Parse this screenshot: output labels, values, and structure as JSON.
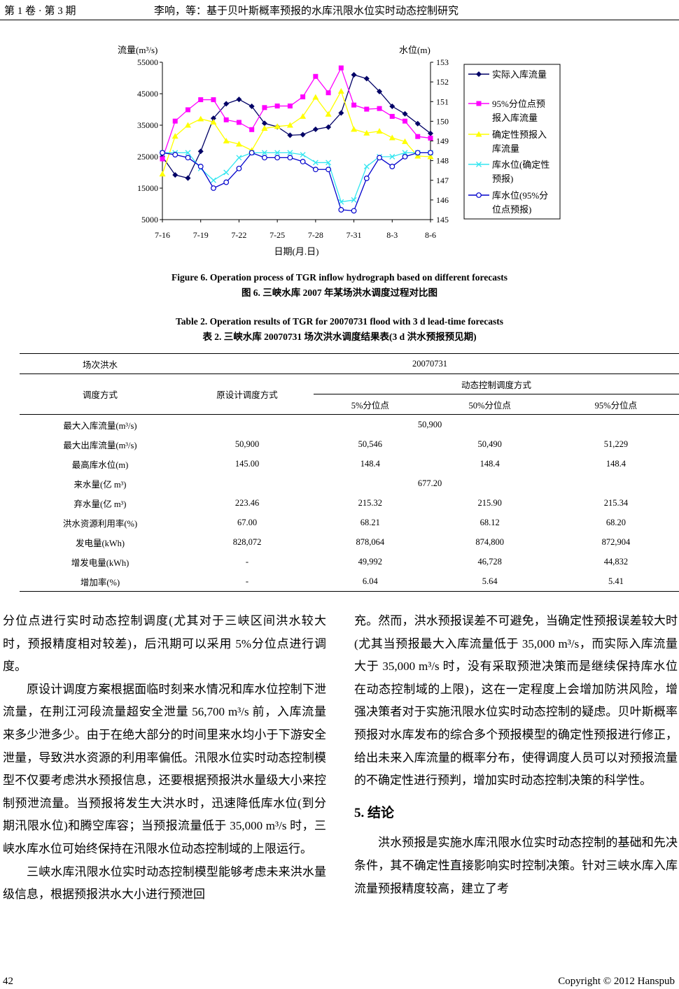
{
  "header": {
    "left": "第 1 卷 · 第 3 期",
    "center": "李响，等：基于贝叶斯概率预报的水库汛限水位实时动态控制研究"
  },
  "chart_data": {
    "type": "line",
    "ylabel": "流量(m³/s)",
    "y2label": "水位(m)",
    "xlabel": "日期(月.日)",
    "ylim": [
      5000,
      55000
    ],
    "y2lim": [
      145,
      153
    ],
    "yticks": [
      "55000",
      "45000",
      "35000",
      "25000",
      "15000",
      "5000"
    ],
    "y2ticks": [
      "153",
      "152",
      "151",
      "150",
      "149",
      "148",
      "147",
      "146",
      "145"
    ],
    "xticks": [
      "7-16",
      "7-19",
      "7-22",
      "7-25",
      "7-28",
      "7-31",
      "8-3",
      "8-6"
    ],
    "x": [
      "7-16",
      "7-17",
      "7-18",
      "7-19",
      "7-20",
      "7-21",
      "7-22",
      "7-23",
      "7-24",
      "7-25",
      "7-26",
      "7-27",
      "7-28",
      "7-29",
      "7-30",
      "7-31",
      "8-1",
      "8-2",
      "8-3",
      "8-4",
      "8-5",
      "8-6"
    ],
    "legend_position": "right",
    "series": [
      {
        "name": "实际入库流量",
        "axis": "left",
        "color": "#000066",
        "marker": "diamond",
        "values": [
          25000,
          19200,
          18200,
          26700,
          37200,
          41800,
          43200,
          41000,
          35600,
          34500,
          31800,
          32000,
          33700,
          34400,
          38900,
          51000,
          49800,
          45700,
          41000,
          38600,
          35500,
          32400
        ]
      },
      {
        "name": "95%分位点预报入库流量",
        "axis": "left",
        "color": "#ff00ff",
        "marker": "square",
        "values": [
          24300,
          36300,
          39900,
          43100,
          43100,
          36700,
          35900,
          33600,
          40600,
          41100,
          41100,
          44000,
          50500,
          45300,
          53200,
          41400,
          40100,
          40300,
          37800,
          36300,
          31400,
          30900
        ]
      },
      {
        "name": "确定性预报入库流量",
        "axis": "left",
        "color": "#ffff00",
        "marker": "triangle",
        "values": [
          19500,
          31500,
          35000,
          37000,
          36000,
          30000,
          29000,
          27000,
          34000,
          34600,
          35000,
          37800,
          43900,
          38500,
          45800,
          33700,
          32500,
          33100,
          31000,
          29800,
          25200,
          25000
        ]
      },
      {
        "name": "库水位(确定性预报)",
        "axis": "right",
        "color": "#33e6f0",
        "marker": "x",
        "values": [
          148.4,
          148.4,
          148.4,
          147.6,
          147.0,
          147.4,
          148.15,
          148.4,
          148.4,
          148.4,
          148.4,
          148.3,
          147.9,
          147.9,
          145.9,
          146.0,
          147.7,
          148.2,
          148.2,
          148.4,
          148.4,
          148.4
        ]
      },
      {
        "name": "库水位(95%分位点预报)",
        "axis": "right",
        "color": "#0000cc",
        "marker": "circle",
        "values": [
          148.4,
          148.3,
          148.15,
          147.7,
          146.6,
          146.9,
          147.6,
          148.4,
          148.15,
          148.15,
          148.15,
          147.95,
          147.55,
          147.55,
          145.5,
          145.45,
          147.1,
          148.15,
          147.7,
          148.2,
          148.4,
          148.4
        ]
      }
    ]
  },
  "legend_lines": [
    [
      "实际入库流量"
    ],
    [
      "95%分位点预",
      "报入库流量"
    ],
    [
      "确定性预报入",
      "库流量"
    ],
    [
      "库水位(确定性",
      "预报)"
    ],
    [
      "库水位(95%分",
      "位点预报)"
    ]
  ],
  "figure_caption": {
    "en": "Figure 6. Operation process of TGR inflow hydrograph based on different forecasts",
    "zh": "图 6.  三峡水库 2007 年某场洪水调度过程对比图"
  },
  "table_caption": {
    "en": "Table 2. Operation results of TGR for 20070731 flood with 3 d lead-time forecasts",
    "zh": "表 2.  三峡水库 20070731 场次洪水调度结果表(3 d 洪水预报预见期)"
  },
  "table": {
    "flood_label": "场次洪水",
    "flood_value": "20070731",
    "mode_label": "调度方式",
    "original": "原设计调度方式",
    "dynamic": "动态控制调度方式",
    "quantiles": [
      "5%分位点",
      "50%分位点",
      "95%分位点"
    ],
    "merged_rows": {
      "0": "50,900",
      "3": "677.20"
    },
    "rows": [
      {
        "label": "最大入库流量(m³/s)",
        "values": []
      },
      {
        "label": "最大出库流量(m³/s)",
        "values": [
          "50,900",
          "50,546",
          "50,490",
          "51,229"
        ]
      },
      {
        "label": "最高库水位(m)",
        "values": [
          "145.00",
          "148.4",
          "148.4",
          "148.4"
        ]
      },
      {
        "label": "来水量(亿 m³)",
        "values": []
      },
      {
        "label": "弃水量(亿 m³)",
        "values": [
          "223.46",
          "215.32",
          "215.90",
          "215.34"
        ]
      },
      {
        "label": "洪水资源利用率(%)",
        "values": [
          "67.00",
          "68.21",
          "68.12",
          "68.20"
        ]
      },
      {
        "label": "发电量(kWh)",
        "values": [
          "828,072",
          "878,064",
          "874,800",
          "872,904"
        ]
      },
      {
        "label": "增发电量(kWh)",
        "values": [
          "-",
          "49,992",
          "46,728",
          "44,832"
        ]
      },
      {
        "label": "增加率(%)",
        "values": [
          "-",
          "6.04",
          "5.64",
          "5.41"
        ]
      }
    ]
  },
  "body": {
    "left": [
      "分位点进行实时动态控制调度(尤其对于三峡区间洪水较大时，预报精度相对较差)，后汛期可以采用 5%分位点进行调度。",
      "原设计调度方案根据面临时刻来水情况和库水位控制下泄流量，在荆江河段流量超安全泄量 56,700 m³/s 前，入库流量来多少泄多少。由于在绝大部分的时间里来水均小于下游安全泄量，导致洪水资源的利用率偏低。汛限水位实时动态控制模型不仅要考虑洪水预报信息，还要根据预报洪水量级大小来控制预泄流量。当预报将发生大洪水时，迅速降低库水位(到分期汛限水位)和腾空库容；当预报流量低于 35,000 m³/s 时，三峡水库水位可始终保持在汛限水位动态控制域的上限运行。",
      "三峡水库汛限水位实时动态控制模型能够考虑未来洪水量级信息，根据预报洪水大小进行预泄回"
    ],
    "right": [
      "充。然而，洪水预报误差不可避免，当确定性预报误差较大时(尤其当预报最大入库流量低于 35,000 m³/s，而实际入库流量大于 35,000 m³/s 时，没有采取预泄决策而是继续保持库水位在动态控制域的上限)，这在一定程度上会增加防洪风险，增强决策者对于实施汛限水位实时动态控制的疑虑。贝叶斯概率预报对水库发布的综合多个预报模型的确定性预报进行修正，给出未来入库流量的概率分布，使得调度人员可以对预报流量的不确定性进行预判，增加实时动态控制决策的科学性。"
    ],
    "section_title": "5.  结论",
    "conclusion": "洪水预报是实施水库汛限水位实时动态控制的基础和先决条件，其不确定性直接影响实时控制决策。针对三峡水库入库流量预报精度较高，建立了考"
  },
  "footer": {
    "page": "42",
    "copyright": "Copyright © 2012 Hanspub"
  }
}
